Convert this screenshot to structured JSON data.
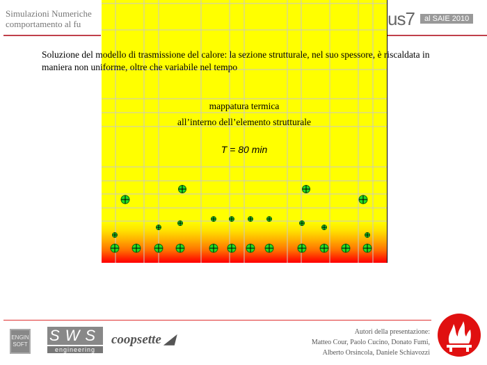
{
  "header": {
    "title_line1": "Simulazioni Numeriche",
    "title_line2": "comportamento al fu",
    "event": "us7",
    "badge": "al SAIE 2010"
  },
  "body": {
    "paragraph": "Soluzione del modello di trasmissione del calore: la sezione strutturale, nel suo spessore, è riscaldata in maniera non uniforme, oltre che variabile nel tempo",
    "caption_line1": "mappatura termica",
    "caption_line2": "all’interno dell’elemento strutturale",
    "time_label": "T = 80 min"
  },
  "colors": {
    "hot": "#ff0000",
    "warm": "#ffff00",
    "rebar": "#22dd22",
    "accent": "#c0404a"
  },
  "footer": {
    "logos": [
      "ENGIN SOFT",
      "S W S",
      "engineering",
      "coopsette"
    ],
    "authors_line1": "Autori della presentazione:",
    "authors_line2": "Matteo Cour, Paolo Cucino, Donato Fumi,",
    "authors_line3": "Alberto Orsincola, Daniele Schiavozzi"
  }
}
